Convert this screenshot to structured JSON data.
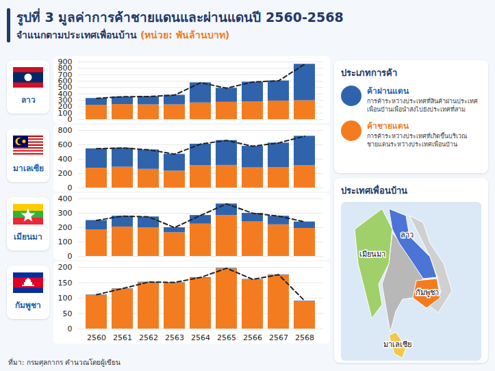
{
  "header": {
    "title": "รูปที่ 3 มูลค่าการค้าชายแดนและผ่านแดนปี 2560-2568",
    "subtitle": "จำแนกตามประเทศเพื่อนบ้าน",
    "unit": "(หน่วย: พันล้านบาท)"
  },
  "chart_data": [
    {
      "type": "bar",
      "stacked": true,
      "title": "ลาว",
      "line_style": "dashed",
      "grid": true,
      "tick_labels": "y",
      "categories": [
        "2560",
        "2561",
        "2562",
        "2563",
        "2564",
        "2565",
        "2566",
        "2567",
        "2568"
      ],
      "series": [
        {
          "name": "ค้าชายแดน",
          "color": "#f47c20",
          "values": [
            225,
            235,
            230,
            230,
            260,
            270,
            275,
            290,
            295
          ]
        },
        {
          "name": "ค้าผ่านแดน",
          "color": "#2f64ad",
          "values": [
            105,
            120,
            130,
            150,
            315,
            220,
            310,
            315,
            570
          ]
        }
      ],
      "ylim": [
        0,
        900
      ],
      "yticks": [
        0,
        100,
        200,
        300,
        400,
        500,
        600,
        700,
        800,
        900
      ]
    },
    {
      "type": "bar",
      "stacked": true,
      "title": "มาเลเซีย",
      "line_style": "dashed",
      "grid": true,
      "tick_labels": "y",
      "categories": [
        "2560",
        "2561",
        "2562",
        "2563",
        "2564",
        "2565",
        "2566",
        "2567",
        "2568"
      ],
      "series": [
        {
          "name": "ค้าชายแดน",
          "color": "#f47c20",
          "values": [
            275,
            290,
            260,
            235,
            310,
            315,
            280,
            285,
            310
          ]
        },
        {
          "name": "ค้าผ่านแดน",
          "color": "#2f64ad",
          "values": [
            270,
            265,
            270,
            235,
            300,
            345,
            300,
            340,
            410
          ]
        }
      ],
      "ylim": [
        0,
        800
      ],
      "yticks": [
        0,
        200,
        400,
        600,
        800
      ]
    },
    {
      "type": "bar",
      "stacked": true,
      "title": "เมียนมา",
      "line_style": "dashed",
      "grid": true,
      "tick_labels": "y",
      "categories": [
        "2560",
        "2561",
        "2562",
        "2563",
        "2564",
        "2565",
        "2566",
        "2567",
        "2568"
      ],
      "series": [
        {
          "name": "ค้าชายแดน",
          "color": "#f47c20",
          "values": [
            185,
            205,
            200,
            165,
            225,
            285,
            240,
            220,
            195
          ]
        },
        {
          "name": "ค้าผ่านแดน",
          "color": "#2f64ad",
          "values": [
            65,
            75,
            75,
            35,
            60,
            80,
            60,
            60,
            45
          ]
        }
      ],
      "ylim": [
        0,
        400
      ],
      "yticks": [
        0,
        100,
        200,
        300,
        400
      ]
    },
    {
      "type": "bar",
      "stacked": true,
      "title": "กัมพูชา",
      "line_style": "dashed",
      "grid": true,
      "categories": [
        "2560",
        "2561",
        "2562",
        "2563",
        "2564",
        "2565",
        "2566",
        "2567",
        "2568"
      ],
      "series": [
        {
          "name": "ค้าชายแดน",
          "color": "#f47c20",
          "values": [
            110,
            130,
            150,
            150,
            165,
            195,
            160,
            175,
            90
          ]
        },
        {
          "name": "ค้าผ่านแดน",
          "color": "#2f64ad",
          "values": [
            1,
            1,
            2,
            1,
            2,
            2,
            1,
            1,
            1
          ]
        }
      ],
      "ylim": [
        0,
        200
      ],
      "yticks": [
        0,
        50,
        100,
        150,
        200
      ]
    }
  ],
  "trade_types": {
    "title": "ประเภทการค้า",
    "items": [
      {
        "name": "ค้าผ่านแดน",
        "color": "#2f64ad",
        "description": "การค้าระหว่างประเทศที่สินค้าผ่านประเทศเพื่อนบ้านเพื่อนำส่งไปยังประเทศที่สาม"
      },
      {
        "name": "ค้าชายแดน",
        "color": "#f47c20",
        "description": "การค้าระหว่างประเทศที่เกิดขึ้นบริเวณชายแดนระหว่างประเทศเพื่อนบ้าน"
      }
    ]
  },
  "map": {
    "title": "ประเทศเพื่อนบ้าน",
    "labels": [
      "ลาว",
      "เมียนมา",
      "กัมพูชา",
      "มาเลเซีย"
    ]
  },
  "source": "ที่มา: กรมศุลกากร คำนวณโดยผู้เขียน"
}
